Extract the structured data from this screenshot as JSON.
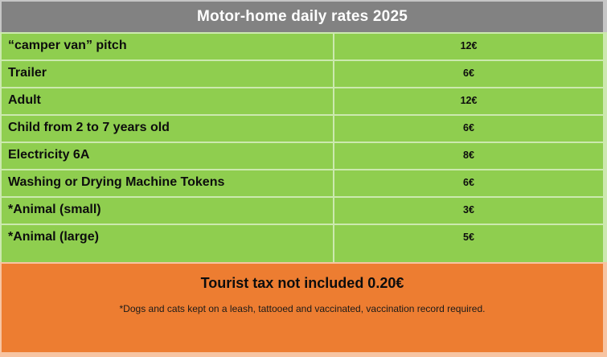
{
  "title": "Motor-home daily rates 2025",
  "colors": {
    "header_gray": "#828282",
    "row_green": "#8FCE4F",
    "footer_orange": "#ED7D31",
    "grid_tint": "rgba(255,255,255,0.55)",
    "title_text": "#ffffff",
    "body_text": "#0d0d0d"
  },
  "rows": [
    {
      "label": "“camper van” pitch",
      "price": "12€"
    },
    {
      "label": "Trailer",
      "price": "6€"
    },
    {
      "label": "Adult",
      "price": "12€"
    },
    {
      "label": "Child from 2 to 7 years old",
      "price": "6€"
    },
    {
      "label": "Electricity 6A",
      "price": "8€"
    },
    {
      "label": "Washing or Drying Machine Tokens",
      "price": "6€"
    },
    {
      "label": "*Animal (small)",
      "price": "3€"
    },
    {
      "label": "*Animal (large)",
      "price": "5€"
    }
  ],
  "footer": {
    "tax_note": "Tourist tax not included 0.20€",
    "animal_note": "*Dogs and cats kept on a leash, tattooed and vaccinated, vaccination record required."
  }
}
